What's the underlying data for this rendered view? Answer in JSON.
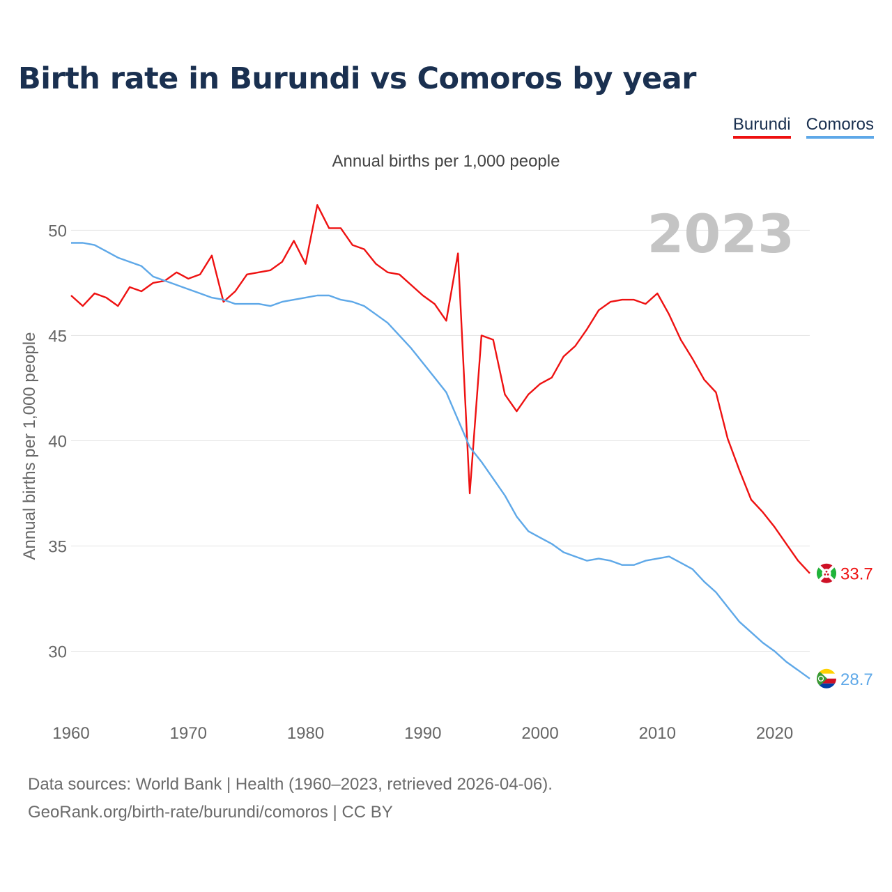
{
  "title": "Birth rate in Burundi vs Comoros by year",
  "subtitle": "Annual births per 1,000 people",
  "legend": [
    {
      "name": "Burundi",
      "color": "#ee1111"
    },
    {
      "name": "Comoros",
      "color": "#5ea8e8"
    }
  ],
  "footer": {
    "line1": "Data sources: World Bank | Health (1960–2023, retrieved 2026-04-06).",
    "line2": "GeoRank.org/birth-rate/burundi/comoros | CC BY"
  },
  "chart_data": {
    "type": "line",
    "title": "Birth rate in Burundi vs Comoros by year",
    "ylabel": "Annual births per 1,000 people",
    "xlabel": "",
    "year_label": "2023",
    "xlim": [
      1960,
      2023
    ],
    "ylim": [
      27.5,
      52
    ],
    "x_ticks": [
      1960,
      1970,
      1980,
      1990,
      2000,
      2010,
      2020
    ],
    "y_ticks": [
      30,
      35,
      40,
      45,
      50
    ],
    "x": [
      1960,
      1961,
      1962,
      1963,
      1964,
      1965,
      1966,
      1967,
      1968,
      1969,
      1970,
      1971,
      1972,
      1973,
      1974,
      1975,
      1976,
      1977,
      1978,
      1979,
      1980,
      1981,
      1982,
      1983,
      1984,
      1985,
      1986,
      1987,
      1988,
      1989,
      1990,
      1991,
      1992,
      1993,
      1994,
      1995,
      1996,
      1997,
      1998,
      1999,
      2000,
      2001,
      2002,
      2003,
      2004,
      2005,
      2006,
      2007,
      2008,
      2009,
      2010,
      2011,
      2012,
      2013,
      2014,
      2015,
      2016,
      2017,
      2018,
      2019,
      2020,
      2021,
      2022,
      2023
    ],
    "series": [
      {
        "name": "Burundi",
        "color": "#ee1111",
        "end_label": "33.7",
        "flag": "burundi-flag-icon",
        "values": [
          46.9,
          46.4,
          47.0,
          46.8,
          46.4,
          47.3,
          47.1,
          47.5,
          47.6,
          48.0,
          47.7,
          47.9,
          48.8,
          46.6,
          47.1,
          47.9,
          48.0,
          48.1,
          48.5,
          49.5,
          48.4,
          51.2,
          50.1,
          50.1,
          49.3,
          49.1,
          48.4,
          48.0,
          47.9,
          47.4,
          46.9,
          46.5,
          45.7,
          48.9,
          37.5,
          45.0,
          44.8,
          42.2,
          41.4,
          42.2,
          42.7,
          43.0,
          44.0,
          44.5,
          45.3,
          46.2,
          46.6,
          46.7,
          46.7,
          46.5,
          47.0,
          46.0,
          44.8,
          43.9,
          42.9,
          42.3,
          40.1,
          38.6,
          37.2,
          36.6,
          35.9,
          35.1,
          34.3,
          33.7
        ]
      },
      {
        "name": "Comoros",
        "color": "#5ea8e8",
        "end_label": "28.7",
        "flag": "comoros-flag-icon",
        "values": [
          49.4,
          49.4,
          49.3,
          49.0,
          48.7,
          48.5,
          48.3,
          47.8,
          47.6,
          47.4,
          47.2,
          47.0,
          46.8,
          46.7,
          46.5,
          46.5,
          46.5,
          46.4,
          46.6,
          46.7,
          46.8,
          46.9,
          46.9,
          46.7,
          46.6,
          46.4,
          46.0,
          45.6,
          45.0,
          44.4,
          43.7,
          43.0,
          42.3,
          41.0,
          39.7,
          39.0,
          38.2,
          37.4,
          36.4,
          35.7,
          35.4,
          35.1,
          34.7,
          34.5,
          34.3,
          34.4,
          34.3,
          34.1,
          34.1,
          34.3,
          34.4,
          34.5,
          34.2,
          33.9,
          33.3,
          32.8,
          32.1,
          31.4,
          30.9,
          30.4,
          30.0,
          29.5,
          29.1,
          28.7
        ]
      }
    ]
  }
}
